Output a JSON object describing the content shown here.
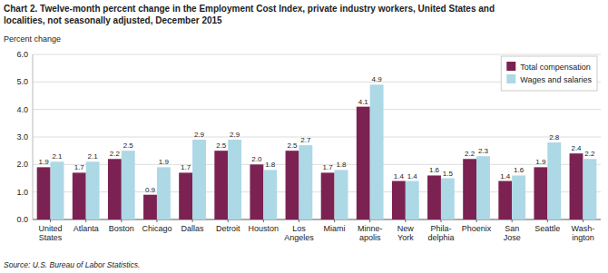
{
  "chart_data": {
    "type": "bar",
    "title": "Chart 2. Twelve-month percent change in the Employment Cost Index, private industry workers, United States and",
    "subtitle": "localities, not seasonally adjusted, December 2015",
    "ylabel": "Percent change",
    "source": "Source: U.S. Bureau of Labor Statistics.",
    "categories": [
      "United\nStates",
      "Atlanta",
      "Boston",
      "Chicago",
      "Dallas",
      "Detroit",
      "Houston",
      "Los\nAngeles",
      "Miami",
      "Minne-\napolis",
      "New\nYork",
      "Phila-\ndelphia",
      "Phoenix",
      "San\nJose",
      "Seattle",
      "Wash-\nington"
    ],
    "series": [
      {
        "name": "Total compensation",
        "color": "#7B2252",
        "values": [
          1.9,
          1.7,
          2.2,
          0.9,
          1.7,
          2.5,
          2.0,
          2.5,
          1.7,
          4.1,
          1.4,
          1.6,
          2.2,
          1.4,
          1.9,
          2.4
        ],
        "value_labels": [
          "1.9",
          "1.7",
          "2.2",
          "0.9",
          "1.7",
          "2.5",
          "2.0",
          "2.5",
          "1.7",
          "4.1",
          "1.4",
          "1.6",
          "2.2",
          "1.4",
          "1.9",
          "2.4"
        ]
      },
      {
        "name": "Wages and salaries",
        "color": "#ADD8E6",
        "values": [
          2.1,
          2.1,
          2.5,
          1.9,
          2.9,
          2.9,
          1.8,
          2.7,
          1.8,
          4.9,
          1.4,
          1.5,
          2.3,
          1.6,
          2.8,
          2.2
        ],
        "value_labels": [
          "2.1",
          "2.1",
          "2.5",
          "1.9",
          "2.9",
          "2.9",
          "1.8",
          "2.7",
          "1.8",
          "4.9",
          "1.4",
          "1.5",
          "2.3",
          "1.6",
          "2.8",
          "2.2"
        ]
      }
    ],
    "ylim": [
      0.0,
      6.0
    ],
    "yticks": [
      {
        "value": 0.0,
        "label": "0.0"
      },
      {
        "value": 1.0,
        "label": "1.0"
      },
      {
        "value": 2.0,
        "label": "2.0"
      },
      {
        "value": 3.0,
        "label": "3.0"
      },
      {
        "value": 4.0,
        "label": "4.0"
      },
      {
        "value": 5.0,
        "label": "5.0"
      },
      {
        "value": 6.0,
        "label": "6.0"
      }
    ],
    "grid": true,
    "legend": "upper right",
    "data_labels": true
  }
}
